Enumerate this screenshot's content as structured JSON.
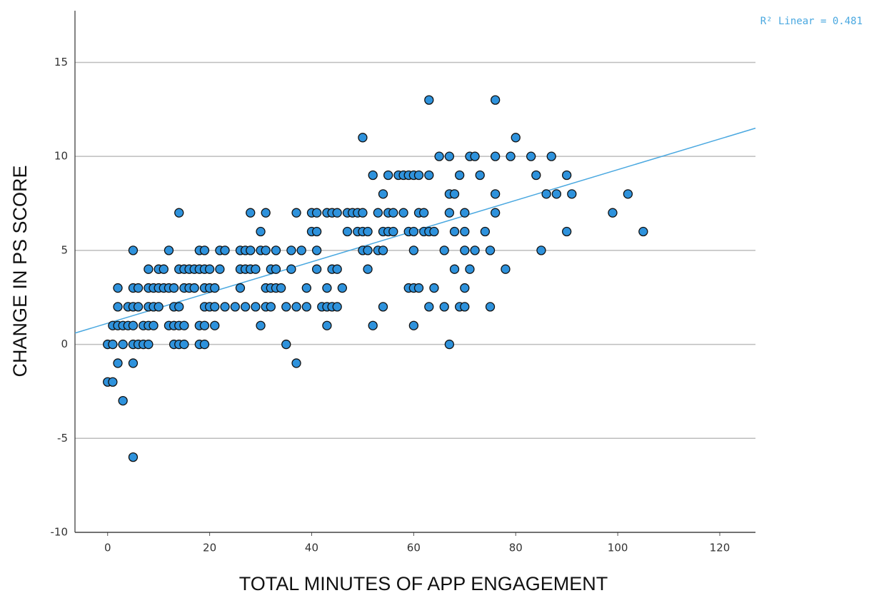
{
  "chart_data": {
    "type": "scatter",
    "x_label": "TOTAL MINUTES OF APP ENGAGEMENT",
    "y_label": "CHANGE IN PS SCORE",
    "annotation": "R² Linear = 0.481",
    "color": "#2e92dc",
    "edge_color": "#111111",
    "grid": true,
    "xlim": [
      -6.4,
      127
    ],
    "xticks": [
      0,
      20,
      40,
      60,
      80,
      100,
      120
    ],
    "ylim": [
      -10,
      17.75
    ],
    "yticks": [
      -10,
      -5,
      0,
      5,
      10,
      15
    ],
    "x": [
      0,
      1,
      0,
      1,
      1,
      2,
      2,
      2,
      2,
      3,
      3,
      3,
      4,
      4,
      5,
      5,
      5,
      5,
      5,
      5,
      5,
      6,
      6,
      6,
      7,
      7,
      8,
      8,
      8,
      8,
      8,
      9,
      9,
      9,
      10,
      10,
      10,
      11,
      11,
      12,
      12,
      12,
      13,
      13,
      13,
      13,
      14,
      14,
      14,
      14,
      14,
      15,
      15,
      15,
      15,
      16,
      16,
      17,
      17,
      18,
      18,
      18,
      18,
      19,
      19,
      19,
      19,
      19,
      19,
      20,
      20,
      20,
      21,
      21,
      21,
      22,
      22,
      23,
      23,
      25,
      26,
      26,
      26,
      27,
      27,
      27,
      28,
      28,
      28,
      29,
      29,
      30,
      30,
      30,
      31,
      31,
      31,
      31,
      32,
      32,
      32,
      33,
      33,
      33,
      34,
      35,
      35,
      36,
      36,
      37,
      37,
      37,
      38,
      39,
      39,
      40,
      40,
      41,
      41,
      41,
      41,
      42,
      43,
      43,
      43,
      43,
      44,
      44,
      44,
      45,
      45,
      45,
      46,
      47,
      47,
      48,
      49,
      49,
      50,
      50,
      50,
      50,
      51,
      51,
      51,
      52,
      52,
      53,
      53,
      54,
      54,
      54,
      54,
      55,
      55,
      55,
      56,
      56,
      57,
      58,
      58,
      59,
      59,
      59,
      60,
      60,
      60,
      60,
      60,
      61,
      61,
      61,
      62,
      62,
      63,
      63,
      63,
      63,
      64,
      64,
      65,
      66,
      66,
      67,
      67,
      67,
      67,
      68,
      68,
      68,
      69,
      69,
      70,
      70,
      70,
      70,
      70,
      71,
      71,
      72,
      72,
      73,
      74,
      75,
      75,
      76,
      76,
      76,
      76,
      78,
      79,
      80,
      83,
      84,
      85,
      86,
      87,
      88,
      90,
      90,
      91,
      99,
      102,
      105
    ],
    "values": [
      -2,
      -2,
      0,
      0,
      1,
      1,
      2,
      3,
      -1,
      0,
      1,
      -3,
      1,
      2,
      5,
      3,
      1,
      0,
      -1,
      -6,
      2,
      3,
      2,
      0,
      1,
      0,
      4,
      3,
      2,
      1,
      0,
      3,
      2,
      1,
      4,
      3,
      2,
      4,
      3,
      5,
      3,
      1,
      3,
      2,
      1,
      0,
      7,
      4,
      2,
      1,
      0,
      4,
      3,
      1,
      0,
      4,
      3,
      4,
      3,
      5,
      4,
      1,
      0,
      5,
      4,
      3,
      2,
      1,
      0,
      4,
      3,
      2,
      3,
      2,
      1,
      5,
      4,
      5,
      2,
      2,
      5,
      4,
      3,
      5,
      4,
      2,
      7,
      5,
      4,
      4,
      2,
      6,
      5,
      1,
      7,
      5,
      3,
      2,
      4,
      3,
      2,
      5,
      4,
      3,
      3,
      2,
      0,
      5,
      4,
      7,
      2,
      -1,
      5,
      3,
      2,
      7,
      6,
      7,
      6,
      5,
      4,
      2,
      7,
      3,
      2,
      1,
      7,
      4,
      2,
      7,
      4,
      2,
      3,
      7,
      6,
      7,
      7,
      6,
      11,
      7,
      6,
      5,
      6,
      5,
      4,
      9,
      1,
      7,
      5,
      8,
      6,
      5,
      2,
      9,
      7,
      6,
      7,
      6,
      9,
      9,
      7,
      9,
      6,
      3,
      9,
      6,
      5,
      3,
      1,
      9,
      7,
      3,
      7,
      6,
      13,
      9,
      6,
      2,
      6,
      3,
      10,
      5,
      2,
      10,
      8,
      7,
      0,
      8,
      6,
      4,
      9,
      2,
      7,
      6,
      5,
      3,
      2,
      10,
      4,
      10,
      5,
      9,
      6,
      5,
      2,
      13,
      10,
      8,
      7,
      4,
      10,
      11,
      10,
      9,
      5,
      8,
      10,
      8,
      9,
      6,
      8,
      7,
      8,
      6
    ],
    "fit_line": {
      "x": [
        -6.4,
        127
      ],
      "values": [
        0.6,
        11.5
      ],
      "color": "#4aa8e0"
    }
  }
}
